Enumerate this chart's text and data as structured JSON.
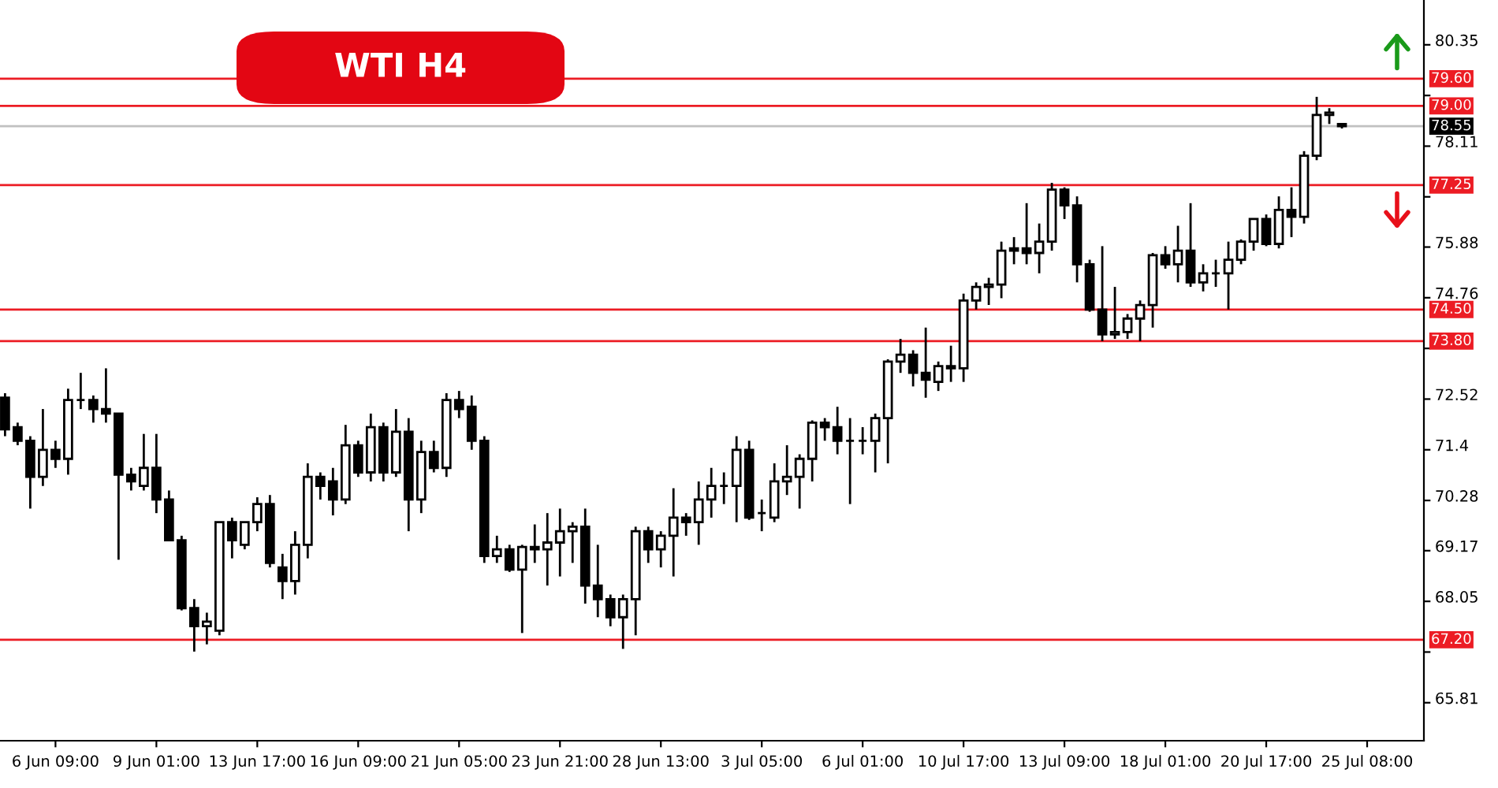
{
  "chart_data": {
    "type": "candlestick",
    "title": "WTI H4",
    "categories": [
      null,
      null,
      null,
      null,
      "6 Jun 09:00",
      null,
      null,
      null,
      null,
      null,
      null,
      null,
      "9 Jun 01:00",
      null,
      null,
      null,
      null,
      null,
      null,
      null,
      "13 Jun 17:00",
      null,
      null,
      null,
      null,
      null,
      null,
      null,
      "16 Jun 09:00",
      null,
      null,
      null,
      null,
      null,
      null,
      null,
      "21 Jun 05:00",
      null,
      null,
      null,
      null,
      null,
      null,
      null,
      "23 Jun 21:00",
      null,
      null,
      null,
      null,
      null,
      null,
      null,
      "28 Jun 13:00",
      null,
      null,
      null,
      null,
      null,
      null,
      null,
      "3 Jul 05:00",
      null,
      null,
      null,
      null,
      null,
      null,
      null,
      "6 Jul 01:00",
      null,
      null,
      null,
      null,
      null,
      null,
      null,
      "10 Jul 17:00",
      null,
      null,
      null,
      null,
      null,
      null,
      null,
      "13 Jul 09:00",
      null,
      null,
      null,
      null,
      null,
      null,
      null,
      "18 Jul 01:00",
      null,
      null,
      null,
      null,
      null,
      null,
      null,
      "20 Jul 17:00",
      null,
      null,
      null,
      null,
      null,
      null,
      null,
      "25 Jul 08:00",
      null,
      null,
      null,
      null
    ],
    "ohlc": [
      [
        72.55,
        72.65,
        71.7,
        71.85
      ],
      [
        71.9,
        72.0,
        71.5,
        71.6
      ],
      [
        71.6,
        71.7,
        70.1,
        70.8
      ],
      [
        70.8,
        72.3,
        70.6,
        71.4
      ],
      [
        71.4,
        71.6,
        71.0,
        71.2
      ],
      [
        71.2,
        72.75,
        70.85,
        72.5
      ],
      [
        72.5,
        73.1,
        72.3,
        72.5
      ],
      [
        72.5,
        72.6,
        72.0,
        72.3
      ],
      [
        72.3,
        73.2,
        72.0,
        72.2
      ],
      [
        72.2,
        72.2,
        68.97,
        70.85
      ],
      [
        70.85,
        71.0,
        70.5,
        70.7
      ],
      [
        70.6,
        71.75,
        70.5,
        71.0
      ],
      [
        71.0,
        71.75,
        70.0,
        70.3
      ],
      [
        70.3,
        70.5,
        69.4,
        69.4
      ],
      [
        69.4,
        69.5,
        67.85,
        67.9
      ],
      [
        67.9,
        68.1,
        66.94,
        67.5
      ],
      [
        67.5,
        67.8,
        67.1,
        67.6
      ],
      [
        67.4,
        69.8,
        67.3,
        69.8
      ],
      [
        69.8,
        69.9,
        69.0,
        69.4
      ],
      [
        69.3,
        69.8,
        69.2,
        69.8
      ],
      [
        69.8,
        70.35,
        69.6,
        70.2
      ],
      [
        70.2,
        70.4,
        68.8,
        68.9
      ],
      [
        68.8,
        69.1,
        68.1,
        68.5
      ],
      [
        68.5,
        69.6,
        68.2,
        69.3
      ],
      [
        69.3,
        71.1,
        69.0,
        70.8
      ],
      [
        70.8,
        70.9,
        70.3,
        70.6
      ],
      [
        70.7,
        71.0,
        69.95,
        70.3
      ],
      [
        70.3,
        71.95,
        70.2,
        71.5
      ],
      [
        71.5,
        71.6,
        70.8,
        70.9
      ],
      [
        70.9,
        72.2,
        70.7,
        71.9
      ],
      [
        71.9,
        72.0,
        70.7,
        70.9
      ],
      [
        70.9,
        72.3,
        70.8,
        71.8
      ],
      [
        71.8,
        72.1,
        69.6,
        70.3
      ],
      [
        70.3,
        71.6,
        70.0,
        71.35
      ],
      [
        71.35,
        71.6,
        70.9,
        71.0
      ],
      [
        71.0,
        72.65,
        70.8,
        72.5
      ],
      [
        72.5,
        72.7,
        72.1,
        72.3
      ],
      [
        72.35,
        72.6,
        71.4,
        71.6
      ],
      [
        71.6,
        71.7,
        68.9,
        69.05
      ],
      [
        69.05,
        69.5,
        68.9,
        69.2
      ],
      [
        69.2,
        69.3,
        68.7,
        68.75
      ],
      [
        68.75,
        69.3,
        67.35,
        69.25
      ],
      [
        69.25,
        69.75,
        68.9,
        69.2
      ],
      [
        69.2,
        70.0,
        68.4,
        69.35
      ],
      [
        69.35,
        70.1,
        68.6,
        69.6
      ],
      [
        69.6,
        69.8,
        68.9,
        69.7
      ],
      [
        69.7,
        70.1,
        68.0,
        68.4
      ],
      [
        68.4,
        69.3,
        67.7,
        68.1
      ],
      [
        68.1,
        68.2,
        67.5,
        67.7
      ],
      [
        67.7,
        68.2,
        67.0,
        68.1
      ],
      [
        68.1,
        69.7,
        67.3,
        69.6
      ],
      [
        69.6,
        69.7,
        68.9,
        69.2
      ],
      [
        69.2,
        69.6,
        68.8,
        69.5
      ],
      [
        69.5,
        70.55,
        68.6,
        69.9
      ],
      [
        69.9,
        70.0,
        69.5,
        69.8
      ],
      [
        69.8,
        70.7,
        69.3,
        70.3
      ],
      [
        70.3,
        71.0,
        69.9,
        70.6
      ],
      [
        70.6,
        70.9,
        70.2,
        70.6
      ],
      [
        70.6,
        71.7,
        69.8,
        71.4
      ],
      [
        71.4,
        71.6,
        69.85,
        69.9
      ],
      [
        70.0,
        70.3,
        69.6,
        70.0
      ],
      [
        69.9,
        71.1,
        69.8,
        70.7
      ],
      [
        70.7,
        71.5,
        70.4,
        70.8
      ],
      [
        70.8,
        71.3,
        70.1,
        71.2
      ],
      [
        71.2,
        72.05,
        70.7,
        72.0
      ],
      [
        72.0,
        72.1,
        71.6,
        71.9
      ],
      [
        71.9,
        72.35,
        71.3,
        71.6
      ],
      [
        71.6,
        72.1,
        70.2,
        71.6
      ],
      [
        71.6,
        71.9,
        71.3,
        71.6
      ],
      [
        71.6,
        72.2,
        70.9,
        72.1
      ],
      [
        72.1,
        73.4,
        71.1,
        73.35
      ],
      [
        73.35,
        73.85,
        73.1,
        73.5
      ],
      [
        73.5,
        73.6,
        72.8,
        73.1
      ],
      [
        73.1,
        74.1,
        72.55,
        72.95
      ],
      [
        72.9,
        73.35,
        72.7,
        73.25
      ],
      [
        73.25,
        73.7,
        72.9,
        73.2
      ],
      [
        73.2,
        74.85,
        72.9,
        74.7
      ],
      [
        74.7,
        75.1,
        74.5,
        75.0
      ],
      [
        75.0,
        75.2,
        74.6,
        75.05
      ],
      [
        75.05,
        76.0,
        74.75,
        75.8
      ],
      [
        75.8,
        76.1,
        75.5,
        75.85
      ],
      [
        75.85,
        76.85,
        75.5,
        75.75
      ],
      [
        75.75,
        76.4,
        75.3,
        76.0
      ],
      [
        76.0,
        77.3,
        75.8,
        77.15
      ],
      [
        77.15,
        77.2,
        76.5,
        76.8
      ],
      [
        76.8,
        77.0,
        75.1,
        75.5
      ],
      [
        75.5,
        75.6,
        74.45,
        74.5
      ],
      [
        74.5,
        75.9,
        73.8,
        73.95
      ],
      [
        73.95,
        75.0,
        73.85,
        74.0
      ],
      [
        74.0,
        74.4,
        73.85,
        74.3
      ],
      [
        74.3,
        74.7,
        73.8,
        74.6
      ],
      [
        74.6,
        75.75,
        74.1,
        75.7
      ],
      [
        75.7,
        75.9,
        75.4,
        75.5
      ],
      [
        75.5,
        76.35,
        75.1,
        75.8
      ],
      [
        75.8,
        76.85,
        75.0,
        75.1
      ],
      [
        75.1,
        75.5,
        74.9,
        75.3
      ],
      [
        75.3,
        75.6,
        75.0,
        75.3
      ],
      [
        75.3,
        76.0,
        74.5,
        75.6
      ],
      [
        75.6,
        76.05,
        75.5,
        76.0
      ],
      [
        76.0,
        76.5,
        75.8,
        76.5
      ],
      [
        76.5,
        76.6,
        75.9,
        75.95
      ],
      [
        75.95,
        77.0,
        75.85,
        76.7
      ],
      [
        76.7,
        77.2,
        76.1,
        76.55
      ],
      [
        76.55,
        78.0,
        76.4,
        77.9
      ],
      [
        77.9,
        79.2,
        77.8,
        78.8
      ],
      [
        78.8,
        78.95,
        78.6,
        78.85
      ],
      [
        78.6,
        78.6,
        78.5,
        78.55
      ],
      null,
      null,
      null,
      null,
      null,
      null
    ],
    "ylim": [
      64.97,
      81.34
    ],
    "yticks": [
      65.81,
      {
        "value": 66.93,
        "label": null
      },
      68.05,
      69.17,
      70.28,
      71.4,
      72.52,
      {
        "value": 73.64,
        "label": null
      },
      74.76,
      75.88,
      {
        "value": 76.99,
        "label": null
      },
      78.11,
      {
        "value": 79.23,
        "label": null
      },
      80.35
    ],
    "ref_lines": [
      {
        "axis": "y",
        "value": 79.6,
        "label": "79.60",
        "color": "#ec1c24"
      },
      {
        "axis": "y",
        "value": 79.0,
        "label": "79.00",
        "color": "#ec1c24"
      },
      {
        "axis": "y",
        "value": 78.55,
        "label": "78.55",
        "color": "#c0c0c0"
      },
      {
        "axis": "y",
        "value": 77.25,
        "label": "77.25",
        "color": "#ec1c24"
      },
      {
        "axis": "y",
        "value": 74.5,
        "label": "74.50",
        "color": "#ec1c24"
      },
      {
        "axis": "y",
        "value": 73.8,
        "label": "73.80",
        "color": "#ec1c24"
      },
      {
        "axis": "y",
        "value": 67.2,
        "label": "67.20",
        "color": "#ec1c24"
      }
    ],
    "grid": false,
    "legend": false
  }
}
